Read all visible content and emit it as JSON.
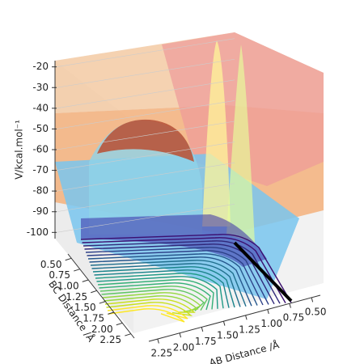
{
  "chart_data": {
    "type": "surface",
    "zlabel": "V/kcal.mol⁻¹",
    "xlabel": "AB Distance /Å",
    "ylabel": "BC Distance /Å",
    "xlim": [
      2.35,
      0.4
    ],
    "xticks": [
      2.25,
      {
        "value": 2.0,
        "label": "2.00"
      },
      1.75,
      {
        "value": 1.5,
        "label": "1.50"
      },
      1.25,
      {
        "value": 1.0,
        "label": "1.00"
      },
      0.75,
      {
        "value": 0.5,
        "label": "0.50"
      }
    ],
    "ylim": [
      0.4,
      2.35
    ],
    "yticks": [
      {
        "value": 0.5,
        "label": "0.50"
      },
      0.75,
      {
        "value": 1.0,
        "label": "1.00"
      },
      1.25,
      {
        "value": 1.5,
        "label": "1.50"
      },
      1.75,
      {
        "value": 2.0,
        "label": "2.00"
      },
      2.25
    ],
    "zlim": [
      -103,
      -17
    ],
    "zticks": [
      -20,
      -30,
      -40,
      -50,
      -60,
      -70,
      -80,
      -90,
      -100
    ]
  }
}
